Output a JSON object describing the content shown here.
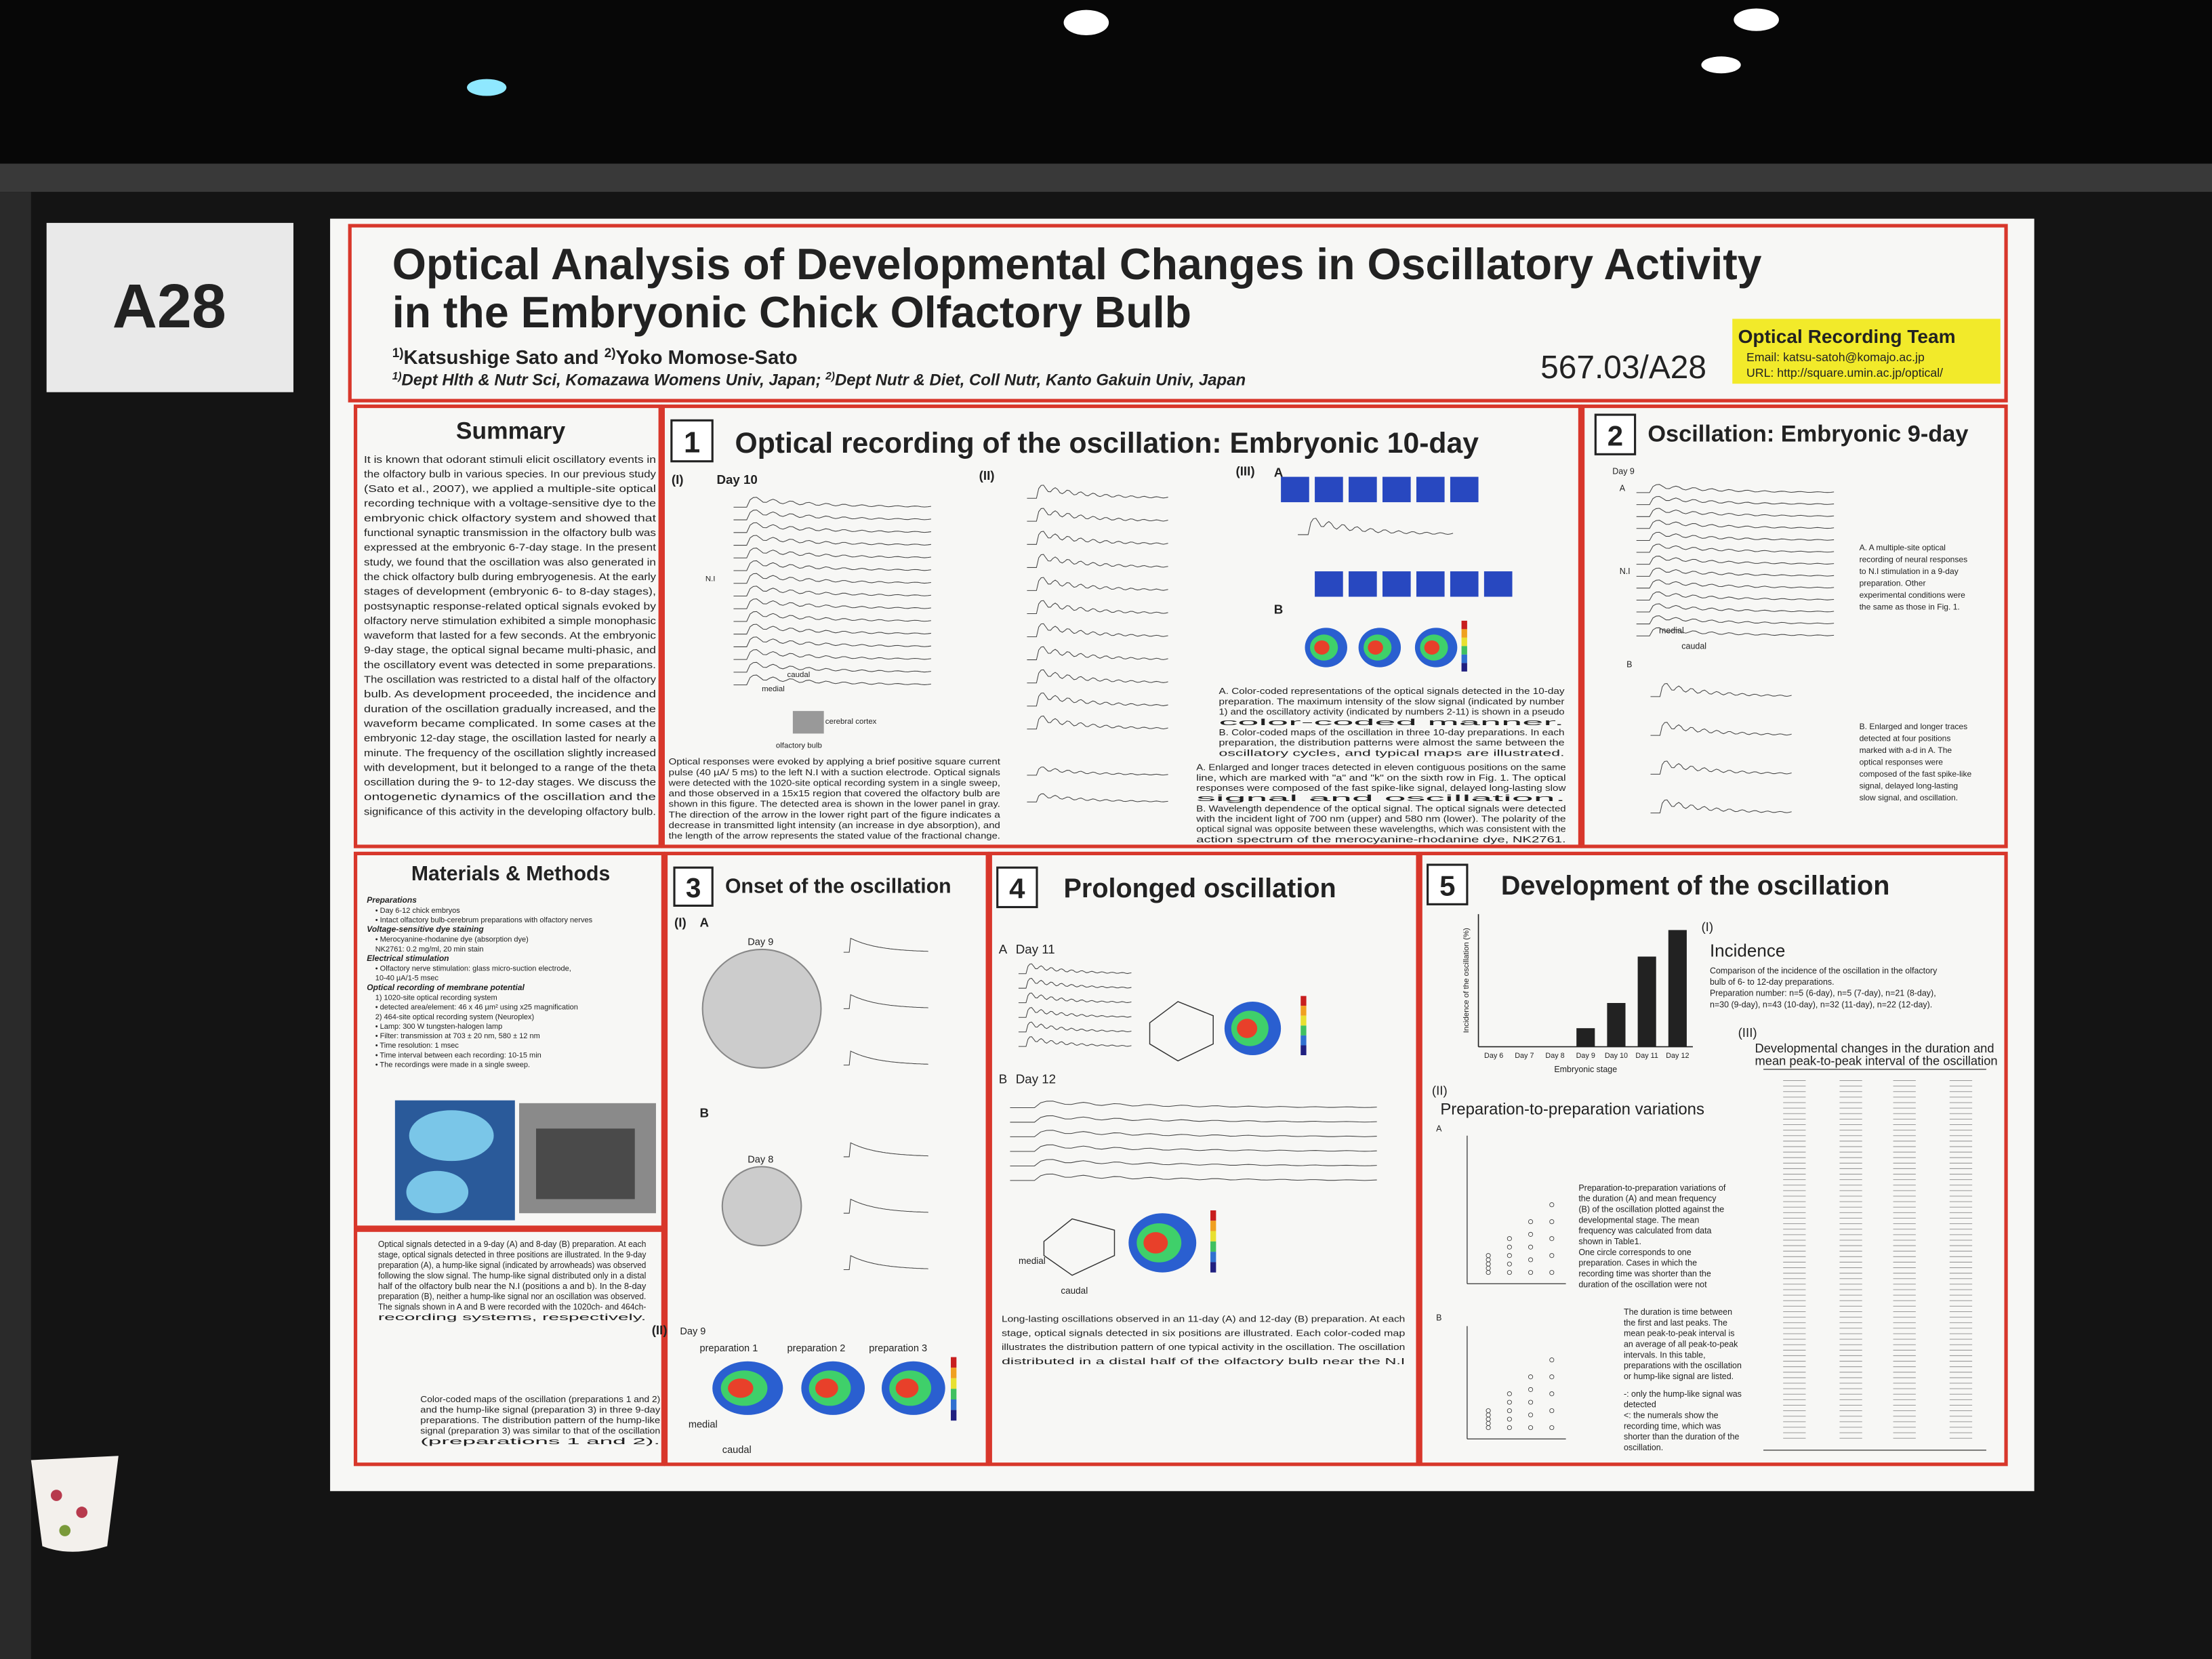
{
  "board_label": "A28",
  "header": {
    "title_lines": [
      "Optical Analysis of Developmental Changes in Oscillatory Activity",
      "in the Embryonic Chick Olfactory Bulb"
    ],
    "authors": [
      {
        "mark": "1)",
        "text": "Katsushige Sato and "
      },
      {
        "mark": "2)",
        "text": "Yoko Momose-Sato"
      }
    ],
    "affiliations": [
      {
        "mark": "1)",
        "text": "Dept Hlth & Nutr Sci, Komazawa Womens Univ, Japan; "
      },
      {
        "mark": "2)",
        "text": "Dept Nutr & Diet, Coll Nutr, Kanto Gakuin Univ, Japan"
      }
    ],
    "abstract_number": "567.03/A28",
    "team": {
      "name": "Optical Recording Team",
      "email": "Email: katsu-satoh@komajo.ac.jp",
      "url": "URL: http://square.umin.ac.jp/optical/"
    }
  },
  "summary": {
    "heading": "Summary",
    "lines": [
      "It is known that odorant stimuli elicit oscillatory events in",
      "the olfactory bulb in various species. In our previous study",
      "(Sato et al., 2007), we applied a multiple-site optical",
      "recording technique with a voltage-sensitive dye to the",
      "embryonic chick olfactory system and showed that",
      "functional synaptic transmission in the olfactory bulb was",
      "expressed at the embryonic 6-7-day stage. In the present",
      "study, we found that the oscillation was also generated in",
      "the chick olfactory bulb during embryogenesis. At the early",
      "stages of development (embryonic 6- to 8-day stages),",
      "postsynaptic response-related optical signals evoked by",
      "olfactory nerve stimulation exhibited a simple monophasic",
      "waveform that lasted for a few seconds. At the embryonic",
      "9-day stage, the optical signal became multi-phasic, and",
      "the oscillatory event was detected in some preparations.",
      "The oscillation was restricted to a distal half of the olfactory",
      "bulb. As development proceeded, the incidence and",
      "duration of the oscillation gradually increased, and the",
      "waveform became complicated. In some cases at the",
      "embryonic 12-day stage, the oscillation lasted for nearly a",
      "minute. The frequency of the oscillation slightly increased",
      "with development, but it belonged to a range of the theta",
      "oscillation during the 9- to 12-day stages. We discuss the",
      "ontogenetic dynamics of the oscillation and the",
      "significance of this activity in the developing olfactory bulb."
    ]
  },
  "materials": {
    "heading": "Materials & Methods",
    "blocks": [
      {
        "heading": "Preparations",
        "items": [
          "• Day 6-12 chick embryos",
          "• Intact olfactory bulb-cerebrum preparations with olfactory nerves"
        ]
      },
      {
        "heading": "Voltage-sensitive dye staining",
        "items": [
          "• Merocyanine-rhodanine dye (absorption dye)",
          "NK2761: 0.2 mg/ml, 20 min stain"
        ]
      },
      {
        "heading": "Electrical stimulation",
        "items": [
          "• Olfactory nerve stimulation: glass micro-suction electrode,",
          "10-40 µA/1-5 msec"
        ]
      },
      {
        "heading": "Optical recording of membrane potential",
        "items": [
          "1) 1020-site optical recording system",
          "• detected area/element: 46 x 46 µm² using x25 magnification",
          "2) 464-site optical recording system (Neuroplex)",
          "• Lamp: 300 W tungsten-halogen lamp",
          "• Filter: transmission at 703 ± 20 nm, 580 ± 12 nm",
          "• Time resolution: 1 msec",
          "• Time interval between each recording: 10-15 min",
          "• The recordings were made in a single sweep."
        ]
      }
    ]
  },
  "sections": [
    {
      "number": "1",
      "heading": "Optical recording of the oscillation: Embryonic 10-day",
      "labels": [
        "(I)",
        "Day 10",
        "(II)",
        "(III)",
        "A",
        "B",
        "N.I",
        "medial",
        "caudal",
        "olfactory bulb",
        "cerebral cortex"
      ],
      "captions": [
        [
          "Optical responses were evoked by applying a brief positive square current",
          "pulse (40 µA/ 5 ms) to the left N.I with a suction electrode. Optical signals",
          "were detected with the 1020-site optical recording system in a single sweep,",
          "and those observed in a 15x15 region that covered the olfactory bulb are",
          "shown in this figure. The detected area is shown in the lower panel in gray.",
          "The direction of the arrow in the lower right part of the figure indicates a",
          "decrease in transmitted light intensity (an increase in dye absorption), and",
          "the length of the arrow represents the stated value of the fractional change."
        ],
        [
          "A. Color-coded representations of the optical signals detected in the 10-day",
          "preparation. The maximum intensity of the slow signal (indicated by number",
          "1) and the oscillatory activity (indicated by numbers 2-11) is shown in a pseudo",
          "color-coded manner.",
          "B. Color-coded maps of the oscillation in three 10-day preparations. In each",
          "preparation, the distribution patterns were almost the same between the",
          "oscillatory cycles, and typical maps are illustrated."
        ],
        [
          "A. Enlarged and longer traces detected in eleven contiguous positions on the same",
          "line, which are marked with \"a\" and \"k\" on the sixth row in Fig. 1. The optical",
          "responses were composed of the fast spike-like signal, delayed long-lasting slow",
          "signal and oscillation.",
          "B. Wavelength dependence of the optical signal. The optical signals were detected",
          "with the incident light of 700 nm (upper) and 580 nm (lower). The polarity of the",
          "optical signal was opposite between these wavelengths, which was consistent with the",
          "action spectrum of the merocyanine-rhodanine dye, NK2761."
        ]
      ]
    },
    {
      "number": "2",
      "heading": "Oscillation: Embryonic 9-day",
      "labels": [
        "Day 9",
        "A",
        "B",
        "N.I",
        "medial",
        "caudal"
      ],
      "captions": [
        [
          "A. A multiple-site optical",
          "recording of neural responses",
          "to N.I stimulation in a 9-day",
          "preparation. Other",
          "experimental conditions were",
          "the same as those in Fig. 1."
        ],
        [
          "B. Enlarged and longer traces",
          "detected at four positions",
          "marked with a-d in A. The",
          "optical responses were",
          "composed of the fast spike-like",
          "signal, delayed long-lasting",
          "slow signal, and oscillation."
        ]
      ]
    },
    {
      "number": "3",
      "heading": "Onset of the oscillation",
      "labels": [
        "(I)",
        "A",
        "Day 9",
        "B",
        "Day 8",
        "(II)",
        "Day 9",
        "preparation 1",
        "preparation 2",
        "preparation 3",
        "medial",
        "caudal"
      ],
      "captions": [
        [
          "Optical signals detected in a 9-day (A) and 8-day (B) preparation. At each",
          "stage, optical signals detected in three positions are illustrated. In the 9-day",
          "preparation (A), a hump-like signal (indicated by arrowheads) was observed",
          "following the slow signal. The hump-like signal distributed only in a distal",
          "half of the olfactory bulb near the N.I (positions a and b). In the 8-day",
          "preparation (B), neither a hump-like signal nor an oscillation was observed.",
          "The signals shown in A and B were recorded with the 1020ch- and 464ch-",
          "recording systems, respectively."
        ],
        [
          "Color-coded maps of the oscillation (preparations 1 and 2)",
          "and the hump-like signal (preparation 3) in three 9-day",
          "preparations. The distribution pattern of the hump-like",
          "signal (preparation 3) was similar to that of the oscillation",
          "(preparations 1 and 2)."
        ]
      ]
    },
    {
      "number": "4",
      "heading": "Prolonged oscillation",
      "labels": [
        "A",
        "Day 11",
        "B",
        "Day 12",
        "medial",
        "caudal"
      ],
      "captions": [
        [
          "Long-lasting oscillations observed in an 11-day (A) and 12-day (B) preparation. At each",
          "stage, optical signals detected in six positions are illustrated. Each color-coded map",
          "illustrates the distribution pattern of one typical activity in the oscillation. The oscillation",
          "distributed in a distal half of the olfactory bulb near the N.I"
        ]
      ]
    },
    {
      "number": "5",
      "heading": "Development of the oscillation",
      "labels": [
        "(I)",
        "(II)",
        "(III)",
        "A",
        "B"
      ],
      "captions": [
        [
          "Comparison of the incidence of the oscillation in the olfactory",
          "bulb of 6- to 12-day preparations.",
          "Preparation number: n=5 (6-day), n=5 (7-day), n=21 (8-day),",
          "n=30 (9-day), n=43 (10-day), n=32 (11-day), n=22 (12-day)."
        ],
        [
          "Preparation-to-preparation variations of",
          "the duration (A) and mean frequency",
          "(B) of the oscillation plotted against the",
          "developmental stage. The mean",
          "frequency was calculated from data",
          "shown in Table1.",
          "One circle corresponds to one",
          "preparation. Cases in which the",
          "recording time was shorter than the",
          "duration of the oscillation were not"
        ],
        [
          "The duration is time between",
          "the first and last peaks. The",
          "mean peak-to-peak interval is",
          "an average of all peak-to-peak",
          "intervals. In this table,",
          "preparations with the oscillation",
          "or hump-like signal are listed."
        ],
        [
          "-: only the hump-like signal was",
          "detected",
          "<: the numerals show the",
          "recording time, which was",
          "shorter than the duration of the",
          "oscillation."
        ]
      ],
      "incidence_title": "Incidence",
      "variations_title": "Preparation-to-preparation variations",
      "table_title": [
        "Developmental changes in the duration and",
        "mean peak-to-peak interval of the oscillation"
      ],
      "chart_data": {
        "type": "bar",
        "categories": [
          "Day 6",
          "Day 7",
          "Day 8",
          "Day 9",
          "Day 10",
          "Day 11",
          "Day 12"
        ],
        "values": [
          0,
          0,
          0,
          14,
          33,
          68,
          88
        ],
        "ylim": [
          0,
          100
        ],
        "color": "#222222",
        "ylabel": "Incidence of the oscillation (%)",
        "xlabel": "Embryonic stage"
      }
    }
  ]
}
